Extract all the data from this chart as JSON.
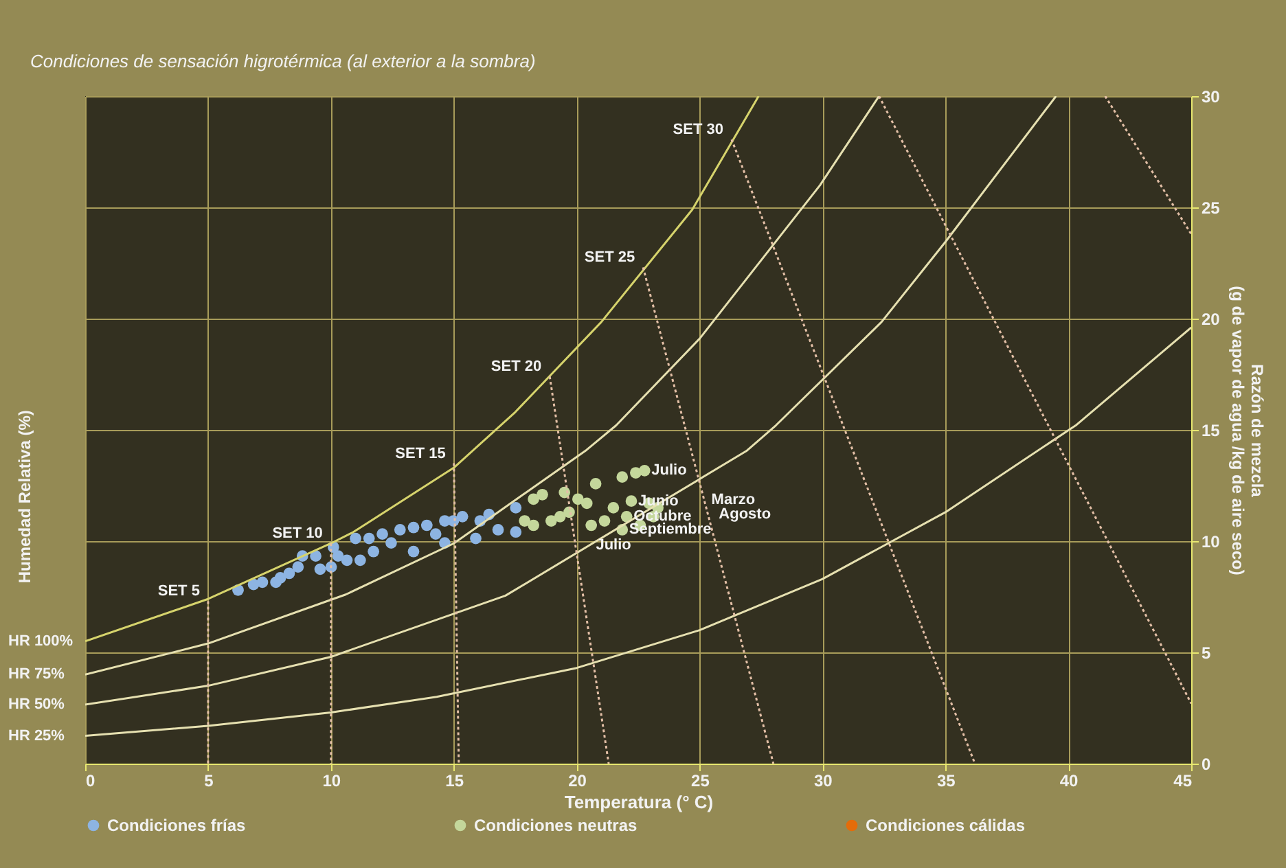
{
  "chart_data": {
    "type": "scatter",
    "title": "Condiciones de sensación higrotérmica (al exterior a la sombra)",
    "xlabel": "Temperatura (° C)",
    "ylabel": "Razón de mezcla\n(g de vapor de  agua  /kg de  aire seco)",
    "xlim": [
      0,
      45
    ],
    "xticks": [
      0,
      5,
      10,
      15,
      20,
      25,
      30,
      35,
      40,
      45
    ],
    "ylim": [
      0,
      30
    ],
    "yticks": [
      0,
      5,
      10,
      15,
      20,
      25,
      30
    ],
    "grid": true,
    "legend": "bottom",
    "series": [
      {
        "type": "line",
        "name": "HR 100%",
        "color": "#d6d36c",
        "line_style": "solid",
        "x": [
          0,
          5,
          10,
          10.9,
          15,
          17.5,
          21,
          24.7,
          27.4
        ],
        "values": [
          5.5,
          7.4,
          9.9,
          10.4,
          13.3,
          15.8,
          19.85,
          24.9,
          30
        ]
      },
      {
        "type": "line",
        "name": "HR 75%",
        "color": "#e6e0b0",
        "line_style": "solid",
        "x": [
          0,
          5,
          10.6,
          15,
          20.4,
          21.6,
          25,
          29.9,
          32.3
        ],
        "values": [
          4.0,
          5.4,
          7.6,
          9.9,
          14.1,
          15.2,
          19.1,
          26,
          30
        ]
      },
      {
        "type": "line",
        "name": "HR 50%",
        "color": "#e6e0b0",
        "line_style": "solid",
        "x": [
          0,
          5,
          10,
          17.1,
          26.9,
          28.1,
          32.4,
          35,
          39.5
        ],
        "values": [
          2.65,
          3.5,
          4.8,
          7.55,
          14.05,
          15.2,
          19.85,
          23.45,
          30
        ]
      },
      {
        "type": "line",
        "name": "HR 25%",
        "color": "#e6e0b0",
        "line_style": "solid",
        "x": [
          0,
          5,
          10,
          14.3,
          20,
          25,
          30,
          35,
          40.3,
          45
        ],
        "values": [
          1.25,
          1.7,
          2.3,
          3.0,
          4.3,
          6.0,
          8.3,
          11.3,
          15.2,
          19.6
        ]
      },
      {
        "type": "line",
        "name": "SET 5",
        "color": "#e3bfa6",
        "line_style": "dotted",
        "x": [
          5,
          5
        ],
        "values": [
          7.3,
          0
        ]
      },
      {
        "type": "line",
        "name": "SET 10",
        "color": "#e3bfa6",
        "line_style": "dotted",
        "x": [
          10,
          10
        ],
        "values": [
          9.9,
          0
        ]
      },
      {
        "type": "line",
        "name": "SET 15",
        "color": "#e3bfa6",
        "line_style": "dotted",
        "x": [
          15,
          15.2
        ],
        "values": [
          13.5,
          0
        ]
      },
      {
        "type": "line",
        "name": "SET 20",
        "color": "#e3bfa6",
        "line_style": "dotted",
        "x": [
          18.9,
          21.3
        ],
        "values": [
          17.4,
          0
        ]
      },
      {
        "type": "line",
        "name": "SET 25",
        "color": "#e3bfa6",
        "line_style": "dotted",
        "x": [
          22.7,
          28.0
        ],
        "values": [
          22.3,
          0
        ]
      },
      {
        "type": "line",
        "name": "SET 30",
        "color": "#e3bfa6",
        "line_style": "dotted",
        "x": [
          26.3,
          36.2
        ],
        "values": [
          28.05,
          0
        ]
      },
      {
        "type": "line",
        "color": "#e3bfa6",
        "line_style": "dotted",
        "x": [
          32.3,
          45
        ],
        "values": [
          30,
          2.7
        ]
      },
      {
        "type": "line",
        "color": "#e3bfa6",
        "line_style": "dotted",
        "x": [
          41.5,
          45
        ],
        "values": [
          30,
          23.8
        ]
      },
      {
        "name": "Condiciones frías",
        "color": "#8db4e2",
        "x": [
          6.22,
          6.85,
          7.21,
          7.76,
          7.94,
          8.3,
          8.66,
          8.84,
          9.38,
          9.56,
          10.01,
          10.1,
          10.29,
          10.65,
          11.0,
          11.19,
          11.55,
          11.73,
          12.09,
          12.45,
          12.81,
          13.36,
          13.36,
          13.9,
          14.26,
          14.63,
          14.63,
          14.98,
          15.35,
          15.89,
          16.07,
          16.43,
          16.8,
          17.52,
          17.52
        ],
        "values": [
          7.8,
          8.05,
          8.15,
          8.15,
          8.35,
          8.55,
          8.84,
          9.33,
          9.33,
          8.74,
          8.84,
          9.73,
          9.33,
          9.14,
          10.12,
          9.14,
          10.12,
          9.53,
          10.32,
          9.92,
          10.51,
          9.53,
          10.61,
          10.71,
          10.32,
          10.91,
          9.92,
          10.91,
          11.1,
          10.12,
          10.91,
          11.2,
          10.51,
          11.5,
          10.41
        ]
      },
      {
        "name": "Condiciones neutras",
        "color": "#c4d79b",
        "x": [
          17.88,
          18.24,
          18.24,
          18.6,
          18.96,
          19.32,
          19.5,
          19.69,
          20.05,
          20.41,
          20.59,
          20.77,
          21.13,
          21.49,
          21.85,
          21.85,
          22.03,
          22.22,
          22.4,
          22.58,
          22.76,
          22.94,
          23.12,
          23.3
        ],
        "values": [
          10.91,
          11.89,
          10.71,
          12.09,
          10.91,
          11.1,
          12.19,
          11.3,
          11.89,
          11.7,
          10.71,
          12.58,
          10.91,
          11.5,
          12.88,
          10.51,
          11.1,
          11.8,
          13.07,
          10.71,
          13.17,
          11.7,
          11.1,
          11.5
        ]
      },
      {
        "name": "Condiciones cálidas",
        "color": "#e46c0a"
      }
    ],
    "annotations": [
      "Humedad Relativa (%)",
      {
        "text": "Julio",
        "x": 22.76,
        "y": 13.17
      },
      {
        "text": "Junio",
        "x": 22.22,
        "y": 11.8
      },
      {
        "text": "Marzo",
        "x": 25.2,
        "y": 11.85
      },
      {
        "text": "Octubre",
        "x": 22.03,
        "y": 11.1
      },
      {
        "text": "Agosto",
        "x": 25.5,
        "y": 11.2
      },
      {
        "text": "Septiembre",
        "x": 21.85,
        "y": 10.51
      },
      {
        "text": "Julio",
        "x": 20.5,
        "y": 9.8
      }
    ]
  }
}
